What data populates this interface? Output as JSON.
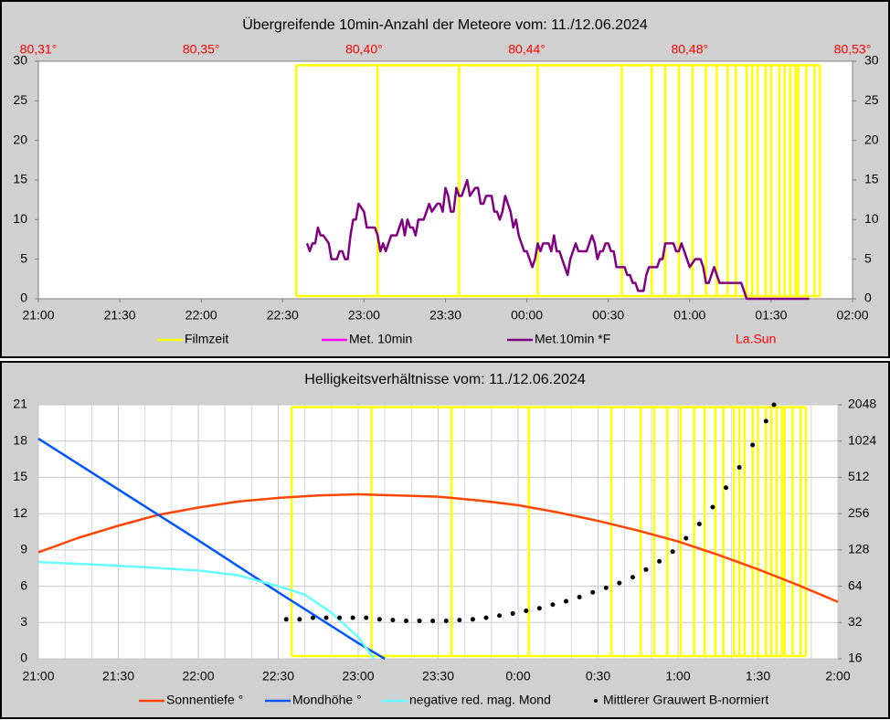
{
  "chart_data": [
    {
      "type": "line",
      "title": "Übergreifende 10min-Anzahl der Meteore vom: 11./12.06.2024",
      "xlim": [
        "21:00",
        "02:00"
      ],
      "xticks": [
        "21:00",
        "21:30",
        "22:00",
        "22:30",
        "23:00",
        "23:30",
        "00:00",
        "00:30",
        "01:00",
        "01:30",
        "02:00"
      ],
      "x2ticks": [
        {
          "value": "21:00",
          "label": "80,31°"
        },
        {
          "value": "22:00",
          "label": "80,35°"
        },
        {
          "value": "23:00",
          "label": "80,40°"
        },
        {
          "value": "00:00",
          "label": "80,44°"
        },
        {
          "value": "01:00",
          "label": "80,48°"
        },
        {
          "value": "02:00",
          "label": "80,53°"
        }
      ],
      "x2label": "La.Sun",
      "x2color": "#ff0000",
      "ylim": [
        0,
        30
      ],
      "yticks": [
        0,
        5,
        10,
        15,
        20,
        25,
        30
      ],
      "y2lim": [
        0,
        30
      ],
      "y2ticks": [
        0,
        5,
        10,
        15,
        20,
        25,
        30
      ],
      "grid": false,
      "series": [
        {
          "name": "Filmzeit",
          "color": "#ffff00",
          "style": "film",
          "x": [
            "22:35",
            "23:05",
            "23:35",
            "00:04",
            "00:35",
            "00:46",
            "00:51",
            "00:56",
            "01:01",
            "01:06",
            "01:10",
            "01:14",
            "01:17",
            "01:21",
            "01:23",
            "01:25",
            "01:28",
            "01:30",
            "01:33",
            "01:35",
            "01:37",
            "01:39",
            "01:40",
            "01:43",
            "01:46",
            "01:48"
          ],
          "values": [
            29.5,
            29.5,
            29.5,
            29.5,
            29.5,
            29.5,
            29.5,
            29.5,
            29.5,
            29.5,
            29.5,
            29.5,
            29.5,
            29.5,
            29.5,
            29.5,
            29.5,
            29.5,
            29.5,
            29.5,
            29.5,
            29.5,
            29.5,
            29.5,
            29.5,
            29.5
          ]
        },
        {
          "name": "Met. 10min",
          "color": "#ff00ff",
          "x": [],
          "values": []
        },
        {
          "name": "Met.10min *F",
          "color": "#800080",
          "x": [
            "22:39",
            "22:40",
            "22:41",
            "22:42",
            "22:43",
            "22:44",
            "22:45",
            "22:47",
            "22:48",
            "22:49",
            "22:50",
            "22:51",
            "22:52",
            "22:53",
            "22:54",
            "22:55",
            "22:56",
            "22:57",
            "22:58",
            "23:00",
            "23:01",
            "23:02",
            "23:03",
            "23:04",
            "23:05",
            "23:06",
            "23:07",
            "23:08",
            "23:09",
            "23:10",
            "23:11",
            "23:12",
            "23:14",
            "23:15",
            "23:16",
            "23:17",
            "23:18",
            "23:19",
            "23:20",
            "23:21",
            "23:22",
            "23:23",
            "23:24",
            "23:25",
            "23:27",
            "23:28",
            "23:29",
            "23:30",
            "23:31",
            "23:32",
            "23:33",
            "23:34",
            "23:35",
            "23:36",
            "23:37",
            "23:38",
            "23:39",
            "23:41",
            "23:42",
            "23:43",
            "23:44",
            "23:45",
            "23:46",
            "23:47",
            "23:48",
            "23:49",
            "23:50",
            "23:51",
            "23:52",
            "23:54",
            "23:55",
            "23:56",
            "23:57",
            "23:58",
            "23:59",
            "00:00",
            "00:01",
            "00:02",
            "00:03",
            "00:04",
            "00:05",
            "00:06",
            "00:08",
            "00:09",
            "00:10",
            "00:11",
            "00:12",
            "00:13",
            "00:14",
            "00:15",
            "00:16",
            "00:17",
            "00:18",
            "00:19",
            "00:21",
            "00:22",
            "00:23",
            "00:24",
            "00:25",
            "00:26",
            "00:27",
            "00:28",
            "00:29",
            "00:30",
            "00:31",
            "00:32",
            "00:33",
            "00:35",
            "00:36",
            "00:37",
            "00:38",
            "00:39",
            "00:40",
            "00:41",
            "00:42",
            "00:43",
            "00:44",
            "00:45",
            "00:46",
            "00:48",
            "00:49",
            "00:50",
            "00:51",
            "00:52",
            "00:53",
            "00:54",
            "00:55",
            "00:56",
            "00:57",
            "00:58",
            "00:59",
            "01:00",
            "01:02",
            "01:03",
            "01:04",
            "01:05",
            "01:06",
            "01:07",
            "01:08",
            "01:09",
            "01:10",
            "01:11",
            "01:12",
            "01:13",
            "01:15",
            "01:16",
            "01:17",
            "01:18",
            "01:19",
            "01:20",
            "01:21",
            "01:25",
            "01:30",
            "01:35",
            "01:40",
            "01:44"
          ],
          "values": [
            7,
            6,
            7,
            7,
            9,
            8,
            8,
            7,
            5,
            5,
            5,
            6,
            6,
            5,
            5,
            8,
            10,
            10,
            12,
            11,
            9,
            9,
            9,
            9,
            8,
            6,
            7,
            6,
            7,
            8,
            8,
            8,
            10,
            8,
            10,
            9,
            9,
            8,
            10,
            10,
            10,
            11,
            12,
            11,
            12,
            12,
            11,
            14,
            13,
            11,
            11,
            14,
            13,
            13,
            14,
            15,
            13,
            14,
            14,
            12,
            12,
            13,
            13,
            13,
            11,
            11,
            10,
            11,
            13,
            11,
            9,
            10,
            8,
            7,
            6,
            6,
            5,
            4,
            5,
            7,
            6,
            7,
            7,
            6,
            8,
            6,
            6,
            5,
            4,
            3,
            5,
            6,
            7,
            6,
            6,
            6,
            7,
            8,
            7,
            5,
            6,
            6,
            7,
            7,
            6,
            6,
            4,
            4,
            4,
            3,
            3,
            2,
            2,
            1,
            1,
            1,
            3,
            4,
            4,
            4,
            5,
            5,
            7,
            7,
            7,
            7,
            6,
            6,
            7,
            6,
            5,
            4,
            5,
            5,
            5,
            4,
            2,
            2,
            3,
            4,
            3,
            2,
            2,
            2,
            2,
            2,
            2,
            2,
            2,
            1,
            0,
            0,
            0,
            0,
            0,
            0
          ]
        }
      ]
    },
    {
      "type": "line",
      "title": "Helligkeitsverhältnisse vom: 11./12.06.2024",
      "xlim": [
        "21:00",
        "2:00"
      ],
      "xticks": [
        "21:00",
        "21:30",
        "22:00",
        "22:30",
        "23:00",
        "23:30",
        "0:00",
        "0:30",
        "1:00",
        "1:30",
        "2:00"
      ],
      "xminor": [
        "21:10",
        "21:20",
        "21:40",
        "21:50",
        "22:10",
        "22:20",
        "22:40",
        "22:50",
        "23:10",
        "23:20",
        "23:40",
        "23:50",
        "0:10",
        "0:20",
        "0:40",
        "0:50",
        "1:10",
        "1:20",
        "1:40",
        "1:50"
      ],
      "ylim": [
        0,
        21
      ],
      "yticks": [
        0,
        3,
        6,
        9,
        12,
        15,
        18,
        21
      ],
      "y2lim": [
        16,
        2048
      ],
      "y2ticks": [
        16,
        32,
        64,
        128,
        256,
        512,
        1024,
        2048
      ],
      "y2log": true,
      "grid": true,
      "series": [
        {
          "name": "Filmzeit",
          "color": "#ffff00",
          "style": "film",
          "legend": false,
          "x": [
            "22:35",
            "23:05",
            "23:35",
            "00:04",
            "00:35",
            "00:46",
            "00:51",
            "00:56",
            "01:01",
            "01:06",
            "01:10",
            "01:14",
            "01:17",
            "01:21",
            "01:23",
            "01:25",
            "01:28",
            "01:30",
            "01:33",
            "01:35",
            "01:37",
            "01:39",
            "01:40",
            "01:43",
            "01:46",
            "01:48"
          ],
          "values": [
            20.8,
            20.8,
            20.8,
            20.8,
            20.8,
            20.8,
            20.8,
            20.8,
            20.8,
            20.8,
            20.8,
            20.8,
            20.8,
            20.8,
            20.8,
            20.8,
            20.8,
            20.8,
            20.8,
            20.8,
            20.8,
            20.8,
            20.8,
            20.8,
            20.8,
            20.8
          ]
        },
        {
          "name": "Sonnentiefe °",
          "color": "#ff4500",
          "x": [
            "21:00",
            "21:15",
            "21:30",
            "21:45",
            "22:00",
            "22:15",
            "22:30",
            "22:45",
            "23:00",
            "23:15",
            "23:30",
            "23:45",
            "0:00",
            "0:15",
            "0:30",
            "0:45",
            "1:00",
            "1:15",
            "1:30",
            "1:45",
            "2:00"
          ],
          "values": [
            8.8,
            10.0,
            11.0,
            11.9,
            12.5,
            13.0,
            13.3,
            13.5,
            13.6,
            13.5,
            13.4,
            13.1,
            12.7,
            12.1,
            11.4,
            10.6,
            9.7,
            8.6,
            7.4,
            6.1,
            4.7
          ]
        },
        {
          "name": "Mondhöhe °",
          "color": "#0055ff",
          "x": [
            "21:00",
            "21:30",
            "22:00",
            "22:30",
            "23:00",
            "23:10"
          ],
          "values": [
            18.2,
            14.0,
            9.8,
            5.5,
            1.3,
            0
          ]
        },
        {
          "name": "negative red. mag. Mond",
          "color": "#66ffff",
          "x": [
            "21:00",
            "21:30",
            "22:00",
            "22:15",
            "22:30",
            "22:40",
            "22:50",
            "23:00",
            "23:06"
          ],
          "values": [
            8.0,
            7.7,
            7.3,
            6.9,
            6.0,
            5.3,
            3.8,
            1.8,
            0
          ]
        },
        {
          "name": "Mittlerer Grauwert B-normiert",
          "color": "#000000",
          "style": "dots",
          "axis": "y2",
          "x": [
            "22:33",
            "22:38",
            "22:43",
            "22:48",
            "22:53",
            "22:58",
            "23:03",
            "23:08",
            "23:13",
            "23:18",
            "23:23",
            "23:28",
            "23:33",
            "23:38",
            "23:43",
            "23:48",
            "23:53",
            "23:58",
            "0:03",
            "0:08",
            "0:13",
            "0:18",
            "0:23",
            "0:28",
            "0:33",
            "0:38",
            "0:43",
            "0:48",
            "0:53",
            "0:58",
            "1:03",
            "1:08",
            "1:13",
            "1:18",
            "1:23",
            "1:28",
            "1:33",
            "1:36"
          ],
          "values": [
            34,
            34,
            35,
            35,
            35,
            35,
            35,
            34,
            33.5,
            33,
            33,
            33,
            33,
            33.5,
            34,
            35,
            36.5,
            38,
            40,
            42,
            45,
            48,
            52,
            57,
            62,
            68,
            76,
            88,
            103,
            124,
            160,
            210,
            290,
            420,
            620,
            950,
            1500,
            2048
          ]
        }
      ]
    }
  ]
}
